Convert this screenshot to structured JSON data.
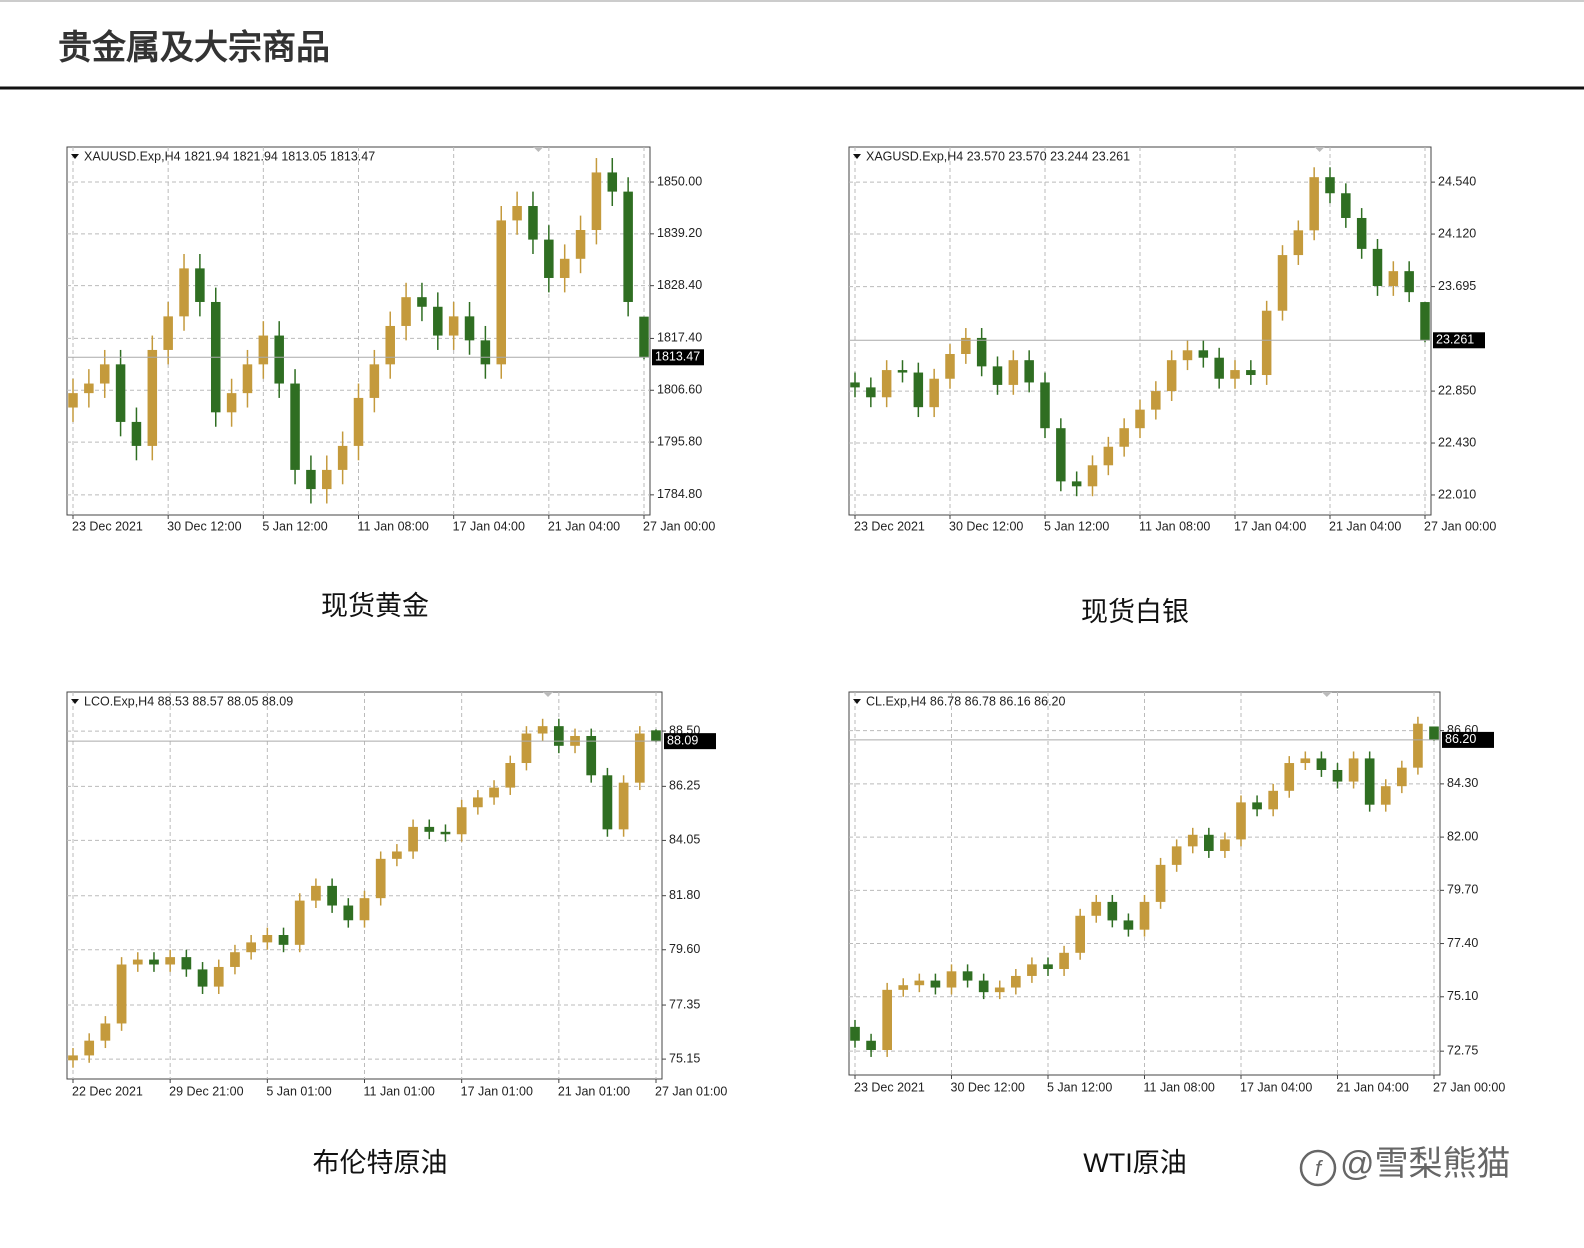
{
  "header": {
    "title": "贵金属及大宗商品"
  },
  "watermark": "@雪梨熊猫",
  "chart_data": [
    {
      "type": "candlestick",
      "info": "XAUUSD.Exp,H4  1821.94 1821.94 1813.05 1813.47",
      "caption": "现货黄金",
      "up_color": "#c49a3c",
      "down_color": "#2f6e22",
      "grid": true,
      "categories": [
        "23 Dec 2021",
        null,
        null,
        null,
        null,
        null,
        "30 Dec 12:00",
        null,
        null,
        null,
        null,
        null,
        "5 Jan 12:00",
        null,
        null,
        null,
        null,
        null,
        "11 Jan 08:00",
        null,
        null,
        null,
        null,
        null,
        "17 Jan 04:00",
        null,
        null,
        null,
        null,
        null,
        "21 Jan 04:00",
        null,
        null,
        null,
        null,
        null,
        "27 Jan 00:00"
      ],
      "open": [
        1803,
        1806,
        1808,
        1812,
        1800,
        1795,
        1815,
        1822,
        1832,
        1825,
        1802,
        1806,
        1812,
        1818,
        1808,
        1790,
        1786,
        1790,
        1795,
        1805,
        1812,
        1820,
        1826,
        1824,
        1818,
        1822,
        1817,
        1812,
        1842,
        1845,
        1838,
        1830,
        1834,
        1840,
        1852,
        1848,
        1821.94
      ],
      "high": [
        1809,
        1811,
        1815,
        1815,
        1803,
        1818,
        1825,
        1835,
        1835,
        1828,
        1809,
        1815,
        1821,
        1821,
        1811,
        1793,
        1793,
        1798,
        1808,
        1815,
        1823,
        1829,
        1829,
        1827,
        1825,
        1825,
        1820,
        1845,
        1848,
        1848,
        1841,
        1837,
        1843,
        1855,
        1855,
        1851,
        1821.94
      ],
      "low": [
        1800,
        1803,
        1805,
        1797,
        1792,
        1792,
        1812,
        1819,
        1822,
        1799,
        1799,
        1803,
        1809,
        1805,
        1787,
        1783,
        1783,
        1787,
        1792,
        1802,
        1809,
        1817,
        1821,
        1815,
        1815,
        1814,
        1809,
        1809,
        1839,
        1835,
        1827,
        1827,
        1831,
        1837,
        1845,
        1822,
        1813.05
      ],
      "close": [
        1806,
        1808,
        1812,
        1800,
        1795,
        1815,
        1822,
        1832,
        1825,
        1802,
        1806,
        1812,
        1818,
        1808,
        1790,
        1786,
        1790,
        1795,
        1805,
        1812,
        1820,
        1826,
        1824,
        1818,
        1822,
        1817,
        1812,
        1842,
        1845,
        1838,
        1830,
        1834,
        1840,
        1852,
        1848,
        1825,
        1813.47
      ],
      "ylim": [
        1780.6,
        1857.3
      ],
      "yticks": [
        {
          "value": 1784.8,
          "label": "1784.80"
        },
        {
          "value": 1795.8,
          "label": "1795.80"
        },
        {
          "value": 1806.6,
          "label": "1806.60"
        },
        {
          "value": 1817.4,
          "label": "1817.40"
        },
        {
          "value": 1828.4,
          "label": "1828.40"
        },
        {
          "value": 1839.2,
          "label": "1839.20"
        },
        {
          "value": 1850,
          "label": "1850.00"
        }
      ],
      "last": 1813.47
    },
    {
      "type": "candlestick",
      "info": "XAGUSD.Exp,H4  23.570 23.570 23.244 23.261",
      "caption": "现货白银",
      "up_color": "#c49a3c",
      "down_color": "#2f6e22",
      "grid": true,
      "categories": [
        "23 Dec 2021",
        null,
        null,
        null,
        null,
        null,
        "30 Dec 12:00",
        null,
        null,
        null,
        null,
        null,
        "5 Jan 12:00",
        null,
        null,
        null,
        null,
        null,
        "11 Jan 08:00",
        null,
        null,
        null,
        null,
        null,
        "17 Jan 04:00",
        null,
        null,
        null,
        null,
        null,
        "21 Jan 04:00",
        null,
        null,
        null,
        null,
        null,
        "27 Jan 00:00"
      ],
      "open": [
        22.92,
        22.88,
        22.8,
        23.02,
        23.0,
        22.72,
        22.95,
        23.15,
        23.28,
        23.05,
        22.9,
        23.1,
        22.92,
        22.55,
        22.12,
        22.08,
        22.25,
        22.4,
        22.55,
        22.7,
        22.85,
        23.1,
        23.18,
        23.12,
        22.95,
        23.02,
        22.98,
        23.5,
        23.95,
        24.15,
        24.58,
        24.45,
        24.25,
        24.0,
        23.7,
        23.82,
        23.57
      ],
      "high": [
        23.0,
        22.96,
        23.1,
        23.1,
        23.08,
        23.03,
        23.23,
        23.36,
        23.36,
        23.13,
        23.18,
        23.18,
        23.0,
        22.63,
        22.2,
        22.33,
        22.48,
        22.63,
        22.78,
        22.93,
        23.18,
        23.26,
        23.26,
        23.2,
        23.1,
        23.1,
        23.58,
        24.03,
        24.23,
        24.66,
        24.66,
        24.53,
        24.33,
        24.08,
        23.9,
        23.9,
        23.57
      ],
      "low": [
        22.8,
        22.72,
        22.72,
        22.92,
        22.64,
        22.64,
        22.87,
        23.07,
        22.97,
        22.82,
        22.82,
        22.84,
        22.47,
        22.04,
        22.0,
        22.0,
        22.17,
        22.32,
        22.47,
        22.62,
        22.77,
        23.02,
        23.04,
        22.87,
        22.87,
        22.9,
        22.9,
        23.42,
        23.87,
        24.07,
        24.37,
        24.17,
        23.92,
        23.62,
        23.62,
        23.57,
        23.244
      ],
      "close": [
        22.88,
        22.8,
        23.02,
        23.0,
        22.72,
        22.95,
        23.15,
        23.28,
        23.05,
        22.9,
        23.1,
        22.92,
        22.55,
        22.12,
        22.08,
        22.25,
        22.4,
        22.55,
        22.7,
        22.85,
        23.1,
        23.18,
        23.12,
        22.95,
        23.02,
        22.98,
        23.5,
        23.95,
        24.15,
        24.58,
        24.45,
        24.25,
        24.0,
        23.7,
        23.82,
        23.65,
        23.261
      ],
      "ylim": [
        21.848,
        24.824
      ],
      "yticks": [
        {
          "value": 22.01,
          "label": "22.010"
        },
        {
          "value": 22.43,
          "label": "22.430"
        },
        {
          "value": 22.85,
          "label": "22.850"
        },
        23.695,
        {
          "value": 24.12,
          "label": "24.120"
        },
        {
          "value": 24.54,
          "label": "24.540"
        }
      ],
      "last": 23.261
    },
    {
      "type": "candlestick",
      "info": "LCO.Exp,H4  88.53 88.57 88.05 88.09",
      "caption": "布伦特原油",
      "up_color": "#c49a3c",
      "down_color": "#2f6e22",
      "grid": true,
      "categories": [
        "22 Dec 2021",
        null,
        null,
        null,
        null,
        null,
        "29 Dec 21:00",
        null,
        null,
        null,
        null,
        null,
        "5 Jan 01:00",
        null,
        null,
        null,
        null,
        null,
        "11 Jan 01:00",
        null,
        null,
        null,
        null,
        null,
        "17 Jan 01:00",
        null,
        null,
        null,
        null,
        null,
        "21 Jan 01:00",
        null,
        null,
        null,
        null,
        null,
        "27 Jan 01:00"
      ],
      "open": [
        75.1,
        75.3,
        75.9,
        76.6,
        79.0,
        79.2,
        79.0,
        79.3,
        78.8,
        78.1,
        78.9,
        79.5,
        79.9,
        80.2,
        79.8,
        81.6,
        82.2,
        81.4,
        80.8,
        81.7,
        83.3,
        83.6,
        84.6,
        84.4,
        84.3,
        85.4,
        85.8,
        86.2,
        87.2,
        88.4,
        88.7,
        87.9,
        88.3,
        86.7,
        84.5,
        86.4,
        88.53
      ],
      "high": [
        75.6,
        76.2,
        76.9,
        79.3,
        79.5,
        79.5,
        79.6,
        79.6,
        79.1,
        79.2,
        79.8,
        80.2,
        80.5,
        80.5,
        81.9,
        82.5,
        82.5,
        81.7,
        82.0,
        83.6,
        83.9,
        84.9,
        84.9,
        84.7,
        85.7,
        86.1,
        86.5,
        87.5,
        88.7,
        89.0,
        89.0,
        88.6,
        88.6,
        87.0,
        86.7,
        88.7,
        88.57
      ],
      "low": [
        74.8,
        75.0,
        75.6,
        76.3,
        78.7,
        78.7,
        78.7,
        78.5,
        77.8,
        77.8,
        78.6,
        79.2,
        79.6,
        79.5,
        79.5,
        81.3,
        81.1,
        80.5,
        80.5,
        81.4,
        83.0,
        83.3,
        84.1,
        84.0,
        84.0,
        85.1,
        85.5,
        85.9,
        86.9,
        88.1,
        87.6,
        87.6,
        86.4,
        84.2,
        84.2,
        86.1,
        88.05
      ],
      "close": [
        75.3,
        75.9,
        76.6,
        79.0,
        79.2,
        79.0,
        79.3,
        78.8,
        78.1,
        78.9,
        79.5,
        79.9,
        80.2,
        79.8,
        81.6,
        82.2,
        81.4,
        80.8,
        81.7,
        83.3,
        83.6,
        84.6,
        84.4,
        84.3,
        85.4,
        85.8,
        86.2,
        87.2,
        88.4,
        88.7,
        87.9,
        88.3,
        86.7,
        84.5,
        86.4,
        88.4,
        88.09
      ],
      "ylim": [
        74.34,
        90.09
      ],
      "yticks": [
        75.15,
        77.35,
        {
          "value": 79.6,
          "label": "79.60"
        },
        {
          "value": 81.8,
          "label": "81.80"
        },
        84.05,
        86.25,
        {
          "value": 88.5,
          "label": "88.50"
        }
      ],
      "last": 88.09
    },
    {
      "type": "candlestick",
      "info": "CL.Exp,H4  86.78 86.78 86.16 86.20",
      "caption": "WTI原油",
      "up_color": "#c49a3c",
      "down_color": "#2f6e22",
      "grid": true,
      "categories": [
        "23 Dec 2021",
        null,
        null,
        null,
        null,
        null,
        "30 Dec 12:00",
        null,
        null,
        null,
        null,
        null,
        "5 Jan 12:00",
        null,
        null,
        null,
        null,
        null,
        "11 Jan 08:00",
        null,
        null,
        null,
        null,
        null,
        "17 Jan 04:00",
        null,
        null,
        null,
        null,
        null,
        "21 Jan 04:00",
        null,
        null,
        null,
        null,
        null,
        "27 Jan 00:00"
      ],
      "open": [
        73.8,
        73.2,
        72.8,
        75.4,
        75.6,
        75.8,
        75.5,
        76.2,
        75.8,
        75.3,
        75.5,
        76.0,
        76.5,
        76.3,
        77.0,
        78.6,
        79.2,
        78.4,
        78.0,
        79.2,
        80.8,
        81.6,
        82.1,
        81.4,
        81.9,
        83.5,
        83.2,
        84.0,
        85.2,
        85.4,
        84.9,
        84.4,
        85.4,
        83.4,
        84.2,
        85.0,
        86.78
      ],
      "high": [
        74.1,
        73.5,
        75.7,
        75.9,
        76.1,
        76.1,
        76.5,
        76.5,
        76.1,
        75.8,
        76.3,
        76.8,
        76.8,
        77.3,
        78.9,
        79.5,
        79.5,
        78.7,
        79.5,
        81.1,
        81.9,
        82.4,
        82.4,
        82.2,
        83.8,
        83.8,
        84.3,
        85.5,
        85.7,
        85.7,
        85.2,
        85.7,
        85.7,
        84.5,
        85.3,
        87.2,
        86.78
      ],
      "low": [
        72.9,
        72.5,
        72.5,
        75.1,
        75.3,
        75.2,
        75.2,
        75.5,
        75.0,
        75.0,
        75.2,
        75.7,
        76.0,
        76.0,
        76.7,
        78.3,
        78.1,
        77.7,
        77.7,
        78.9,
        80.5,
        81.3,
        81.1,
        81.1,
        81.6,
        82.9,
        82.9,
        83.7,
        84.9,
        84.6,
        84.1,
        84.1,
        83.1,
        83.1,
        83.9,
        84.7,
        86.16
      ],
      "close": [
        73.2,
        72.8,
        75.4,
        75.6,
        75.8,
        75.5,
        76.2,
        75.8,
        75.3,
        75.5,
        76.0,
        76.5,
        76.3,
        77.0,
        78.6,
        79.2,
        78.4,
        78.0,
        79.2,
        80.8,
        81.6,
        82.1,
        81.4,
        81.9,
        83.5,
        83.2,
        84.0,
        85.2,
        85.4,
        84.9,
        84.4,
        85.4,
        83.4,
        84.2,
        85.0,
        86.9,
        86.2
      ],
      "ylim": [
        71.72,
        88.27
      ],
      "yticks": [
        72.75,
        {
          "value": 75.1,
          "label": "75.10"
        },
        {
          "value": 77.4,
          "label": "77.40"
        },
        {
          "value": 79.7,
          "label": "79.70"
        },
        {
          "value": 82,
          "label": "82.00"
        },
        {
          "value": 84.3,
          "label": "84.30"
        },
        {
          "value": 86.6,
          "label": "86.60"
        }
      ],
      "last": {
        "value": 86.2,
        "label": "86.20"
      }
    }
  ]
}
